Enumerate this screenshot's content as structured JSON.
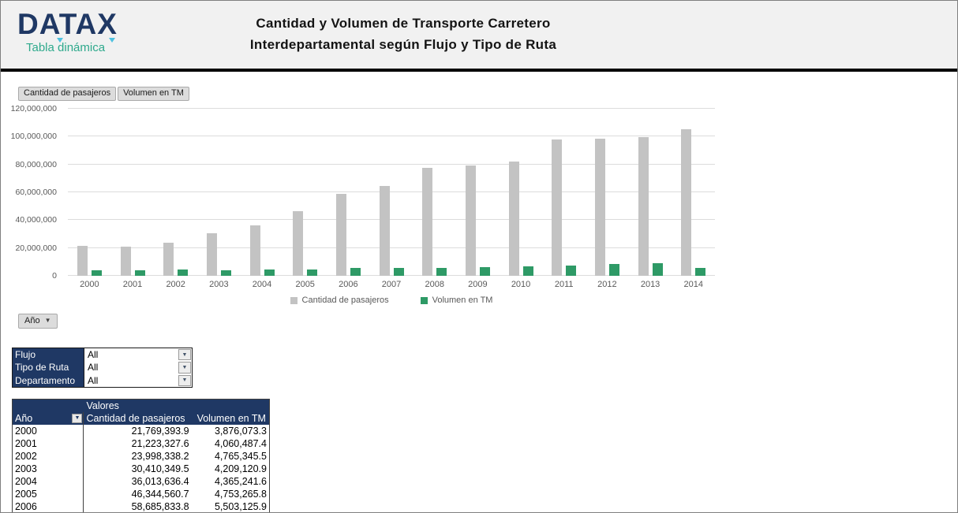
{
  "header": {
    "brand": "DATAX",
    "brand_subtitle": "Tabla dinámica",
    "title_line1": "Cantidad y Volumen de Transporte Carretero",
    "title_line2": "Interdepartamental según Flujo y Tipo de Ruta"
  },
  "chart": {
    "field_buttons": [
      "Cantidad de pasajeros",
      "Volumen en TM"
    ],
    "axis_field_button": "Año"
  },
  "chart_data": {
    "type": "bar",
    "title": "",
    "xlabel": "",
    "ylabel": "",
    "categories": [
      "2000",
      "2001",
      "2002",
      "2003",
      "2004",
      "2005",
      "2006",
      "2007",
      "2008",
      "2009",
      "2010",
      "2011",
      "2012",
      "2013",
      "2014"
    ],
    "series": [
      {
        "name": "Cantidad de pasajeros",
        "color": "#C3C3C3",
        "values": [
          21769393.9,
          21223327.6,
          23998338.2,
          30410349.5,
          36013636.4,
          46344560.7,
          58685833.8,
          64500000,
          77400000,
          79000000,
          82100000,
          97700000,
          98600000,
          99900000,
          105300000
        ]
      },
      {
        "name": "Volumen en TM",
        "color": "#2E9A66",
        "values": [
          3876073.3,
          4060487.4,
          4765345.5,
          4209120.9,
          4365241.6,
          4753265.8,
          5503125.9,
          5600000,
          5900000,
          6300000,
          6900000,
          7400000,
          8400000,
          8900000,
          5700000
        ]
      }
    ],
    "ylim": [
      0,
      120000000
    ],
    "ytick_labels": [
      "0",
      "20,000,000",
      "40,000,000",
      "60,000,000",
      "80,000,000",
      "100,000,000",
      "120,000,000"
    ],
    "grid": true,
    "legend_position": "bottom"
  },
  "filters": {
    "rows": [
      {
        "label": "Flujo",
        "value": "All"
      },
      {
        "label": "Tipo de Ruta",
        "value": "All"
      },
      {
        "label": "Departamento",
        "value": "All"
      }
    ]
  },
  "pivot_table": {
    "values_label": "Valores",
    "row_field_label": "Año",
    "value_columns": [
      "Cantidad de pasajeros",
      "Volumen en TM"
    ],
    "rows": [
      {
        "year": "2000",
        "pasajeros": "21,769,393.9",
        "volumen": "3,876,073.3"
      },
      {
        "year": "2001",
        "pasajeros": "21,223,327.6",
        "volumen": "4,060,487.4"
      },
      {
        "year": "2002",
        "pasajeros": "23,998,338.2",
        "volumen": "4,765,345.5"
      },
      {
        "year": "2003",
        "pasajeros": "30,410,349.5",
        "volumen": "4,209,120.9"
      },
      {
        "year": "2004",
        "pasajeros": "36,013,636.4",
        "volumen": "4,365,241.6"
      },
      {
        "year": "2005",
        "pasajeros": "46,344,560.7",
        "volumen": "4,753,265.8"
      },
      {
        "year": "2006",
        "pasajeros": "58,685,833.8",
        "volumen": "5,503,125.9"
      }
    ]
  },
  "colors": {
    "navy": "#1F3864",
    "teal": "#2EA98C",
    "bar_gray": "#C3C3C3",
    "bar_green": "#2E9A66",
    "header_bg": "#F1F1F1"
  }
}
